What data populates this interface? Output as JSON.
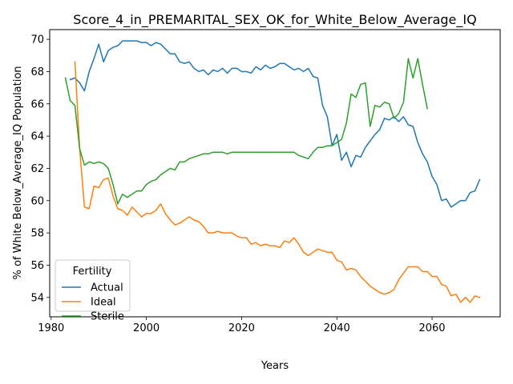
{
  "chart_data": {
    "type": "line",
    "title": "Score_4_in_PREMARITAL_SEX_OK_for_White_Below_Average_IQ",
    "xlabel": "Years",
    "ylabel": "% of White Below_Average_IQ Population",
    "xlim": [
      1979.7,
      2074.3
    ],
    "ylim": [
      52.8,
      70.6
    ],
    "xticks": [
      1980,
      2000,
      2020,
      2040,
      2060
    ],
    "yticks": [
      54,
      56,
      58,
      60,
      62,
      64,
      66,
      68,
      70
    ],
    "grid": false,
    "legend": {
      "title": "Fertility",
      "position": "lower-left"
    },
    "series": [
      {
        "name": "Actual",
        "color": "#1f77b4",
        "x": [
          1984,
          1985,
          1986,
          1987,
          1988,
          1989,
          1990,
          1991,
          1992,
          1993,
          1994,
          1995,
          1996,
          1997,
          1998,
          1999,
          2000,
          2001,
          2002,
          2003,
          2004,
          2005,
          2006,
          2007,
          2008,
          2009,
          2010,
          2011,
          2012,
          2013,
          2014,
          2015,
          2016,
          2017,
          2018,
          2019,
          2020,
          2021,
          2022,
          2023,
          2024,
          2025,
          2026,
          2027,
          2028,
          2029,
          2030,
          2031,
          2032,
          2033,
          2034,
          2035,
          2036,
          2037,
          2038,
          2039,
          2040,
          2041,
          2042,
          2043,
          2044,
          2045,
          2046,
          2047,
          2048,
          2049,
          2050,
          2051,
          2052,
          2053,
          2054,
          2055,
          2056,
          2057,
          2058,
          2059,
          2060,
          2061,
          2062,
          2063,
          2064,
          2065,
          2066,
          2067,
          2068,
          2069,
          2070
        ],
        "y": [
          67.5,
          67.6,
          67.3,
          66.8,
          68.0,
          68.8,
          69.7,
          68.6,
          69.3,
          69.5,
          69.6,
          69.9,
          69.9,
          69.9,
          69.9,
          69.8,
          69.8,
          69.6,
          69.8,
          69.7,
          69.4,
          69.1,
          69.1,
          68.6,
          68.5,
          68.6,
          68.2,
          68.0,
          68.1,
          67.8,
          68.1,
          68.0,
          68.2,
          67.9,
          68.2,
          68.2,
          68.0,
          68.0,
          67.9,
          68.3,
          68.1,
          68.4,
          68.2,
          68.3,
          68.5,
          68.5,
          68.3,
          68.1,
          68.2,
          68.0,
          68.2,
          67.7,
          67.6,
          65.9,
          65.2,
          63.4,
          64.1,
          62.5,
          63.0,
          62.1,
          62.8,
          62.7,
          63.3,
          63.7,
          64.1,
          64.4,
          65.1,
          65.0,
          65.2,
          64.9,
          65.2,
          64.7,
          64.6,
          63.6,
          62.9,
          62.4,
          61.5,
          61.0,
          60.0,
          60.1,
          59.6,
          59.8,
          60.0,
          60.0,
          60.5,
          60.6,
          61.3
        ]
      },
      {
        "name": "Ideal",
        "color": "#ff7f0e",
        "x": [
          1985,
          1986,
          1987,
          1988,
          1989,
          1990,
          1991,
          1992,
          1993,
          1994,
          1995,
          1996,
          1997,
          1998,
          1999,
          2000,
          2001,
          2002,
          2003,
          2004,
          2005,
          2006,
          2007,
          2008,
          2009,
          2010,
          2011,
          2012,
          2013,
          2014,
          2015,
          2016,
          2017,
          2018,
          2019,
          2020,
          2021,
          2022,
          2023,
          2024,
          2025,
          2026,
          2027,
          2028,
          2029,
          2030,
          2031,
          2032,
          2033,
          2034,
          2035,
          2036,
          2037,
          2038,
          2039,
          2040,
          2041,
          2042,
          2043,
          2044,
          2045,
          2046,
          2047,
          2048,
          2049,
          2050,
          2051,
          2052,
          2053,
          2054,
          2055,
          2056,
          2057,
          2058,
          2059,
          2060,
          2061,
          2062,
          2063,
          2064,
          2065,
          2066,
          2067,
          2068,
          2069,
          2070
        ],
        "y": [
          68.6,
          63.2,
          59.6,
          59.5,
          60.9,
          60.8,
          61.3,
          61.4,
          60.3,
          59.5,
          59.4,
          59.1,
          59.6,
          59.3,
          59.0,
          59.2,
          59.2,
          59.4,
          59.8,
          59.2,
          58.8,
          58.5,
          58.6,
          58.8,
          59.0,
          58.8,
          58.7,
          58.4,
          58.0,
          58.0,
          58.1,
          58.0,
          58.0,
          58.0,
          57.8,
          57.7,
          57.7,
          57.3,
          57.4,
          57.2,
          57.3,
          57.2,
          57.2,
          57.1,
          57.5,
          57.4,
          57.7,
          57.3,
          56.8,
          56.6,
          56.8,
          57.0,
          56.9,
          56.8,
          56.8,
          56.3,
          56.2,
          55.7,
          55.8,
          55.7,
          55.3,
          55.0,
          54.7,
          54.5,
          54.3,
          54.2,
          54.3,
          54.5,
          55.1,
          55.5,
          55.9,
          55.9,
          55.9,
          55.6,
          55.6,
          55.3,
          55.3,
          54.8,
          54.7,
          54.1,
          54.2,
          53.7,
          54.0,
          53.7,
          54.1,
          54.0
        ]
      },
      {
        "name": "Sterile",
        "color": "#2ca02c",
        "x": [
          1983,
          1984,
          1985,
          1986,
          1987,
          1988,
          1989,
          1990,
          1991,
          1992,
          1993,
          1994,
          1995,
          1996,
          1997,
          1998,
          1999,
          2000,
          2001,
          2002,
          2003,
          2004,
          2005,
          2006,
          2007,
          2008,
          2009,
          2010,
          2011,
          2012,
          2013,
          2014,
          2015,
          2016,
          2017,
          2018,
          2019,
          2020,
          2021,
          2022,
          2023,
          2024,
          2025,
          2026,
          2027,
          2028,
          2029,
          2030,
          2031,
          2032,
          2033,
          2034,
          2035,
          2036,
          2037,
          2038,
          2039,
          2040,
          2041,
          2042,
          2043,
          2044,
          2045,
          2046,
          2047,
          2048,
          2049,
          2050,
          2051,
          2052,
          2053,
          2054,
          2055,
          2056,
          2057,
          2058,
          2059
        ],
        "y": [
          67.6,
          66.2,
          65.9,
          63.2,
          62.2,
          62.4,
          62.3,
          62.4,
          62.3,
          62.0,
          61.0,
          59.8,
          60.4,
          60.2,
          60.4,
          60.6,
          60.6,
          61.0,
          61.2,
          61.3,
          61.6,
          61.8,
          62.0,
          61.9,
          62.4,
          62.4,
          62.6,
          62.7,
          62.8,
          62.9,
          62.9,
          63.0,
          63.0,
          63.0,
          62.9,
          63.0,
          63.0,
          63.0,
          63.0,
          63.0,
          63.0,
          63.0,
          63.0,
          63.0,
          63.0,
          63.0,
          63.0,
          63.0,
          63.0,
          62.8,
          62.7,
          62.6,
          63.0,
          63.3,
          63.3,
          63.4,
          63.4,
          63.6,
          63.8,
          64.8,
          66.6,
          66.4,
          67.2,
          67.3,
          64.6,
          65.9,
          65.8,
          66.1,
          66.0,
          65.1,
          65.4,
          66.1,
          68.8,
          67.6,
          68.8,
          67.2,
          65.7
        ]
      }
    ]
  }
}
